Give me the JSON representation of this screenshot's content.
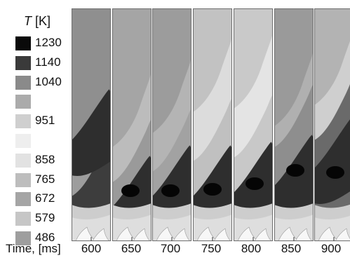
{
  "legend": {
    "symbol": "T",
    "unit": "[K]",
    "levels": [
      {
        "label": "1230",
        "color": "#0a0a0a"
      },
      {
        "label": "1140",
        "color": "#3a3a3a"
      },
      {
        "label": "1040",
        "color": "#8a8a8a"
      },
      {
        "label": "",
        "color": "#ababab"
      },
      {
        "label": "951",
        "color": "#cfcfcf"
      },
      {
        "label": "",
        "color": "#eeeeee"
      },
      {
        "label": "858",
        "color": "#e2e2e2"
      },
      {
        "label": "765",
        "color": "#bdbdbd"
      },
      {
        "label": "672",
        "color": "#a5a5a5"
      },
      {
        "label": "579",
        "color": "#c6c6c6"
      },
      {
        "label": "486",
        "color": "#9e9e9e"
      }
    ]
  },
  "axis": {
    "label": "Time, [ms]",
    "ticks": [
      "600",
      "650",
      "700",
      "750",
      "800",
      "850",
      "900"
    ]
  },
  "panels": [
    {
      "time_ms": 600,
      "dark_core": false
    },
    {
      "time_ms": 650,
      "dark_core": true
    },
    {
      "time_ms": 700,
      "dark_core": true
    },
    {
      "time_ms": 750,
      "dark_core": true
    },
    {
      "time_ms": 800,
      "dark_core": true
    },
    {
      "time_ms": 850,
      "dark_core": true
    },
    {
      "time_ms": 900,
      "dark_core": true
    }
  ]
}
